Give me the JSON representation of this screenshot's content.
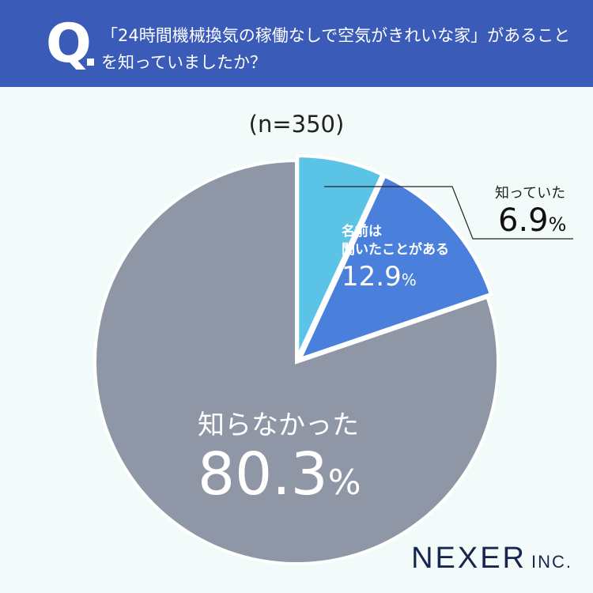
{
  "header": {
    "q_mark": "Q",
    "question": "「24時間機械換気の稼働なしで空気がきれいな家」があることを知っていましたか？"
  },
  "sample_size": "(n=350)",
  "chart_data": {
    "type": "pie",
    "start": "top, clockwise",
    "slices": [
      {
        "label": "知っていた",
        "value": 6.9,
        "display": "6.9",
        "unit": "%",
        "color": "#5bc4e6"
      },
      {
        "label": "名前は聞いたことがある",
        "value": 12.9,
        "display": "12.9",
        "unit": "%",
        "color": "#4a80db"
      },
      {
        "label": "知らなかった",
        "value": 80.3,
        "display": "80.3",
        "unit": "%",
        "color": "#8f97a6"
      }
    ]
  },
  "labels": {
    "knew": "知っていた",
    "heard_line1": "名前は",
    "heard_line2": "聞いたことがある",
    "no": "知らなかった"
  },
  "logo": {
    "main": "NEXER",
    "sub": "INC."
  }
}
